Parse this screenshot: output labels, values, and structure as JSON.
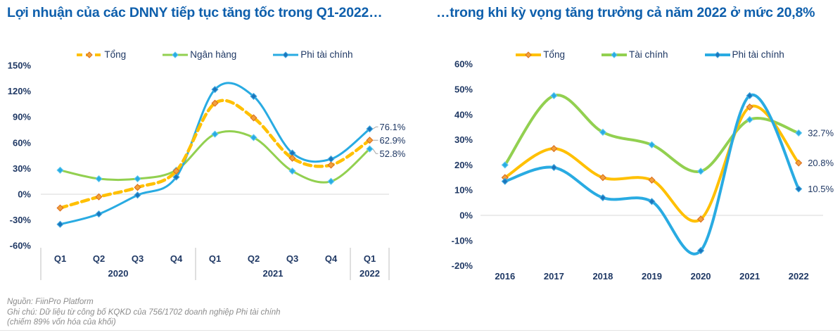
{
  "page": {
    "background": "#FFFFFF"
  },
  "colors": {
    "title": "#0E5FAC",
    "axis_text": "#1F3864",
    "grid": "#D9D9D9",
    "divider": "#BFBFBF",
    "leader": "#A6A6A6",
    "footnote": "#8C8C8C",
    "bottom_rule": "#E3E3E3",
    "orange_line": "#FFC000",
    "green_line": "#92D050",
    "blue_line": "#29ABE2"
  },
  "left_chart": {
    "title": "Lợi nhuận của các DNNY tiếp tục tăng tốc trong Q1-2022…"
  },
  "right_chart": {
    "title": "…trong khi kỳ vọng tăng trưởng cả năm 2022 ở mức 20,8%"
  },
  "footnote": {
    "line1": "Nguồn: FiinPro Platform",
    "line2": "Ghi chú: Dữ liệu từ công bố KQKD của 756/1702 doanh nghiệp Phi tài chính",
    "line3": "(chiếm 89% vốn hóa của khối)"
  },
  "chart_data": [
    {
      "id": "left",
      "type": "line",
      "smooth": true,
      "title": "Lợi nhuận của các DNNY tiếp tục tăng tốc trong Q1-2022…",
      "categories": [
        "Q1",
        "Q2",
        "Q3",
        "Q4",
        "Q1",
        "Q2",
        "Q3",
        "Q4",
        "Q1"
      ],
      "category_groups": [
        {
          "label": "2020",
          "span": 4
        },
        {
          "label": "2021",
          "span": 4
        },
        {
          "label": "2022",
          "span": 1
        }
      ],
      "ylim": [
        -60,
        150
      ],
      "ytick_step": 30,
      "ytick_suffix": "%",
      "grid": "zero-line-only",
      "legend_position": "top",
      "series": [
        {
          "key": "tong",
          "name": "Tổng",
          "values": [
            -16,
            -3,
            8,
            27,
            106,
            89,
            42,
            34,
            62.9
          ],
          "color": "#FFC000",
          "line_style": "dashed",
          "marker": "diamond",
          "marker_fill": "#F2A13C",
          "marker_stroke": "#DC701F",
          "end_label": "62.9%"
        },
        {
          "key": "ngan-hang",
          "name": "Ngân hàng",
          "values": [
            28,
            18,
            18,
            28,
            70,
            66,
            27,
            15,
            52.8
          ],
          "color": "#92D050",
          "line_style": "solid",
          "marker": "diamond",
          "marker_fill": "#29ABE2",
          "marker_stroke": "#5BC8F0",
          "end_label": "52.8%"
        },
        {
          "key": "phi-tai-chinh",
          "name": "Phi tài chính",
          "values": [
            -35,
            -23,
            -1,
            20,
            122,
            114,
            48,
            41,
            76.1
          ],
          "color": "#29ABE2",
          "line_style": "solid",
          "marker": "diamond",
          "marker_fill": "#1B75BC",
          "marker_stroke": "#3FA9E0",
          "end_label": "76.1%"
        }
      ]
    },
    {
      "id": "right",
      "type": "line",
      "smooth": true,
      "title": "…trong khi kỳ vọng tăng trưởng cả năm 2022 ở mức 20,8%",
      "categories": [
        "2016",
        "2017",
        "2018",
        "2019",
        "2020",
        "2021",
        "2022"
      ],
      "ylim": [
        -20,
        60
      ],
      "ytick_step": 10,
      "ytick_suffix": "%",
      "grid": "zero-line-only",
      "legend_position": "top",
      "series": [
        {
          "key": "tong",
          "name": "Tổng",
          "values": [
            15,
            26.5,
            15,
            14,
            -1.5,
            43,
            20.8
          ],
          "color": "#FFC000",
          "line_style": "solid",
          "marker": "diamond",
          "marker_fill": "#F2A13C",
          "marker_stroke": "#DC701F",
          "end_label": "20.8%"
        },
        {
          "key": "tai-chinh",
          "name": "Tài chính",
          "values": [
            20,
            47.5,
            33,
            28,
            17.5,
            38,
            32.7
          ],
          "color": "#92D050",
          "line_style": "solid",
          "marker": "diamond",
          "marker_fill": "#29ABE2",
          "marker_stroke": "#5BC8F0",
          "end_label": "32.7%"
        },
        {
          "key": "phi-tai-chinh",
          "name": "Phi tài chính",
          "values": [
            13.5,
            19,
            7,
            5.5,
            -14,
            47.5,
            10.5
          ],
          "color": "#29ABE2",
          "line_style": "solid",
          "marker": "diamond",
          "marker_fill": "#1B75BC",
          "marker_stroke": "#3FA9E0",
          "end_label": "10.5%"
        }
      ]
    }
  ]
}
